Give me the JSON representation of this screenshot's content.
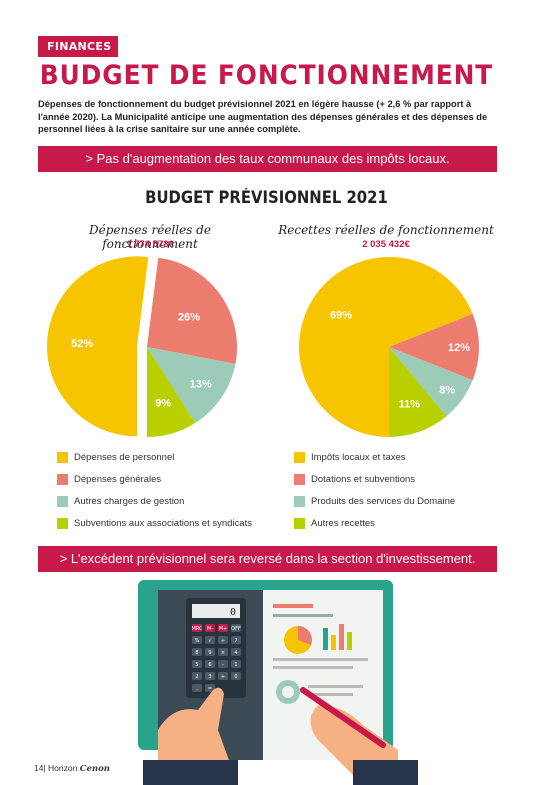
{
  "header": {
    "section_tag": "FINANCES",
    "title": "BUDGET DE FONCTIONNEMENT",
    "intro": "Dépenses de fonctionnement du budget prévisionnel 2021 en légère hausse (+ 2,6 % par rapport à l'année 2020). La Municipalité anticipe une augmentation des dépenses générales et des dépenses de personnel liées à la crise sanitaire sur une année complète."
  },
  "banner_top": "> Pas d'augmentation des taux communaux des impôts locaux.",
  "banner_bottom": "> L'excédent prévisionnel sera reversé dans la section d'investissement.",
  "colors": {
    "accent": "#c8194b",
    "yellow": "#f7c400",
    "salmon": "#ec7d6e",
    "teal": "#9ccbb7",
    "green": "#b8d000"
  },
  "chart_data": [
    {
      "type": "pie",
      "title": "BUDGET PRÉVISIONNEL 2021",
      "subtitle": "Dépenses réelles de fonctionnement",
      "total": "1 774 573€",
      "slices": [
        {
          "label": "Dépenses de personnel",
          "value": 52,
          "display": "52%",
          "color": "#f7c400"
        },
        {
          "label": "Dépenses générales",
          "value": 26,
          "display": "26%",
          "color": "#ec7d6e"
        },
        {
          "label": "Autres charges de gestion",
          "value": 13,
          "display": "13%",
          "color": "#9ccbb7"
        },
        {
          "label": "Subventions aux associations et syndicats",
          "value": 9,
          "display": "9%",
          "color": "#b8d000"
        }
      ]
    },
    {
      "type": "pie",
      "subtitle": "Recettes réelles de fonctionnement",
      "total": "2 035 432€",
      "slices": [
        {
          "label": "Impôts locaux et taxes",
          "value": 69,
          "display": "69%",
          "color": "#f7c400"
        },
        {
          "label": "Dotations et subventions",
          "value": 12,
          "display": "12%",
          "color": "#ec7d6e"
        },
        {
          "label": "Produits des services du Domaine",
          "value": 8,
          "display": "8%",
          "color": "#9ccbb7"
        },
        {
          "label": "Autres recettes",
          "value": 11,
          "display": "11%",
          "color": "#b8d000"
        }
      ]
    }
  ],
  "illustration": {
    "name": "calculator-and-finance-folder-illustration",
    "calculator_display": "0",
    "calculator_keys": [
      "MRC",
      "M-",
      "M+",
      "OFF",
      "%",
      "√",
      "÷",
      "7",
      "8",
      "9",
      "×",
      "4",
      "5",
      "6",
      "-",
      "1",
      "2",
      "3",
      "+",
      "0",
      ".",
      "="
    ]
  },
  "footer": {
    "page": "14",
    "magazine": "Horizon",
    "town": "Cenon"
  }
}
